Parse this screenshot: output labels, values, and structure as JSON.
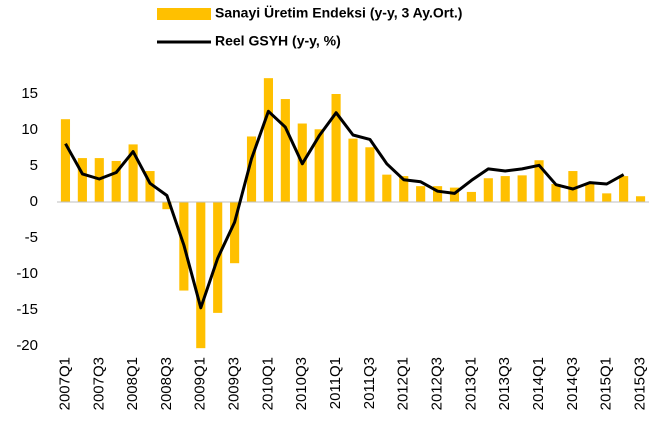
{
  "chart_data": {
    "type": "combo",
    "categories": [
      "2007Q1",
      null,
      "2007Q3",
      null,
      "2008Q1",
      null,
      "2008Q3",
      null,
      "2009Q1",
      null,
      "2009Q3",
      null,
      "2010Q1",
      null,
      "2010Q3",
      null,
      "2011Q1",
      null,
      "2011Q3",
      null,
      "2012Q1",
      null,
      "2012Q3",
      null,
      "2013Q1",
      null,
      "2013Q3",
      null,
      "2014Q1",
      null,
      "2014Q3",
      null,
      "2015Q1",
      null,
      "2015Q3"
    ],
    "series": [
      {
        "name": "Sanayi Üretim Endeksi (y-y, 3 Ay.Ort.)",
        "type": "bar",
        "color": "#ffc000",
        "values": [
          11.5,
          6.1,
          6.1,
          5.7,
          8.0,
          4.3,
          -1.0,
          -12.3,
          -20.3,
          -15.4,
          -8.5,
          9.1,
          17.2,
          14.3,
          10.9,
          10.1,
          15.0,
          8.8,
          7.6,
          3.8,
          3.6,
          2.2,
          2.2,
          2.0,
          1.4,
          3.3,
          3.6,
          3.7,
          5.8,
          2.5,
          4.3,
          2.6,
          1.2,
          3.6,
          0.8
        ]
      },
      {
        "name": "Reel GSYH (y-y, %)",
        "type": "line",
        "color": "#000000",
        "values": [
          8.1,
          3.9,
          3.2,
          4.1,
          7.0,
          2.6,
          0.9,
          -6.0,
          -14.7,
          -7.8,
          -2.8,
          6.0,
          12.6,
          10.4,
          5.3,
          9.2,
          12.4,
          9.3,
          8.7,
          5.3,
          3.1,
          2.8,
          1.5,
          1.2,
          3.0,
          4.6,
          4.3,
          4.6,
          5.1,
          2.4,
          1.8,
          2.7,
          2.5,
          3.8,
          null
        ]
      }
    ],
    "ylim": [
      -20,
      20
    ],
    "yticks": [
      -20,
      -15,
      -10,
      -5,
      0,
      5,
      10,
      15
    ],
    "grid": false,
    "legend": "top"
  }
}
